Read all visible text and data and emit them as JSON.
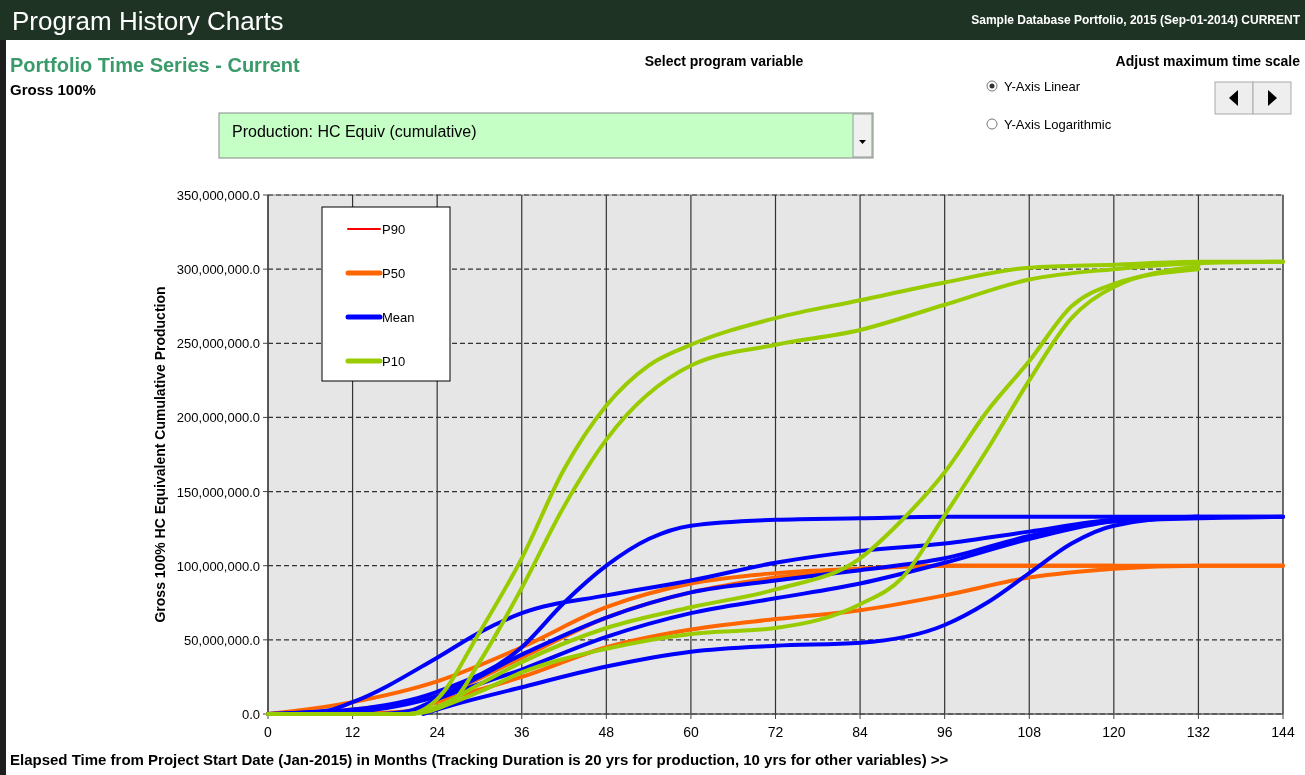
{
  "chart_data": {
    "type": "line",
    "title": "Program History Charts",
    "subtitle": "Portfolio Time Series - Current",
    "xlabel": "Elapsed Time from Project Start Date (Jan-2015) in Months (Tracking Duration is 20 yrs for production, 10 yrs for other variables) >>",
    "ylabel": "Gross 100% HC Equivalent Cumulative Production",
    "annotations": [
      "Sample Database Portfolio, 2015 (Sep-01-2014) CURRENT",
      "Gross 100%",
      "Select program variable",
      "Adjust maximum time scale",
      "Y-Axis Linear",
      "Y-Axis Logarithmic",
      "Production: HC Equiv (cumulative)"
    ],
    "xlim": [
      0,
      144
    ],
    "xticks": [
      0,
      12,
      24,
      36,
      48,
      60,
      72,
      84,
      96,
      108,
      120,
      132,
      144
    ],
    "ylim": [
      0,
      350000000
    ],
    "yticks": [
      {
        "value": 0,
        "label": "0.0"
      },
      {
        "value": 50000000,
        "label": "50,000,000.0"
      },
      {
        "value": 100000000,
        "label": "100,000,000.0"
      },
      {
        "value": 150000000,
        "label": "150,000,000.0"
      },
      {
        "value": 200000000,
        "label": "200,000,000.0"
      },
      {
        "value": 250000000,
        "label": "250,000,000.0"
      },
      {
        "value": 300000000,
        "label": "300,000,000.0"
      },
      {
        "value": 350000000,
        "label": "350,000,000.0"
      }
    ],
    "grid": true,
    "legend": "top left",
    "line_style": "solid",
    "marker": "none",
    "series": [
      {
        "name": "P90",
        "color": "#ff0000"
      },
      {
        "name": "P50",
        "color": "#ff6600",
        "x": [
          0,
          12,
          24,
          36,
          48,
          60,
          72,
          84,
          96,
          144
        ],
        "values": [
          0,
          8000000,
          22000000,
          45000000,
          72000000,
          88000000,
          95000000,
          98000000,
          100000000,
          100000000
        ]
      },
      {
        "color": "#ff6600",
        "x": [
          0,
          12,
          24,
          36,
          48,
          60,
          72,
          84,
          96,
          120
        ],
        "values": [
          0,
          3000000,
          12000000,
          38000000,
          65000000,
          82000000,
          92000000,
          98000000,
          100000000,
          100000000
        ]
      },
      {
        "color": "#ff6600",
        "x": [
          12,
          20,
          24,
          36,
          48,
          60,
          72,
          84,
          96,
          108,
          120,
          132,
          144
        ],
        "values": [
          0,
          2000000,
          8000000,
          25000000,
          45000000,
          57000000,
          64000000,
          70000000,
          80000000,
          92000000,
          98000000,
          100000000,
          100000000
        ]
      },
      {
        "name": "Mean",
        "color": "#0000ff",
        "x": [
          0,
          12,
          24,
          36,
          42,
          48,
          54,
          60,
          72,
          84,
          96,
          144
        ],
        "values": [
          0,
          3000000,
          15000000,
          45000000,
          75000000,
          100000000,
          118000000,
          127000000,
          131000000,
          132000000,
          133000000,
          133000000
        ]
      },
      {
        "color": "#0000ff",
        "x": [
          0,
          8,
          12,
          24,
          30,
          36,
          48,
          60,
          72,
          84,
          96,
          108,
          120,
          132
        ],
        "values": [
          0,
          2000000,
          8000000,
          38000000,
          55000000,
          68000000,
          80000000,
          90000000,
          102000000,
          110000000,
          115000000,
          123000000,
          131000000,
          133000000
        ]
      },
      {
        "color": "#0000ff",
        "x": [
          10,
          14,
          24,
          36,
          48,
          60,
          72,
          84,
          96,
          108,
          120,
          144
        ],
        "values": [
          0,
          2000000,
          12000000,
          40000000,
          65000000,
          82000000,
          90000000,
          97000000,
          105000000,
          120000000,
          130000000,
          133000000
        ]
      },
      {
        "color": "#0000ff",
        "x": [
          16,
          20,
          24,
          36,
          48,
          60,
          72,
          84,
          96,
          108,
          120,
          132
        ],
        "values": [
          0,
          2000000,
          10000000,
          30000000,
          52000000,
          68000000,
          78000000,
          88000000,
          102000000,
          118000000,
          130000000,
          133000000
        ]
      },
      {
        "color": "#0000ff",
        "x": [
          22,
          24,
          36,
          48,
          60,
          72,
          84,
          96,
          102,
          108,
          114,
          120,
          132,
          144
        ],
        "values": [
          0,
          3000000,
          18000000,
          32000000,
          42000000,
          46000000,
          48000000,
          60000000,
          75000000,
          95000000,
          115000000,
          127000000,
          133000000,
          133000000
        ]
      },
      {
        "name": "P10",
        "color": "#99cc00",
        "x": [
          0,
          20,
          24,
          30,
          36,
          42,
          48,
          54,
          60,
          72,
          84,
          96,
          108,
          120,
          132,
          144
        ],
        "values": [
          0,
          0,
          10000000,
          55000000,
          105000000,
          165000000,
          208000000,
          235000000,
          249000000,
          267000000,
          279000000,
          291000000,
          301000000,
          303000000,
          305000000,
          305000000
        ]
      },
      {
        "color": "#99cc00",
        "x": [
          10,
          20,
          26,
          30,
          36,
          42,
          48,
          60,
          72,
          84,
          96,
          108,
          120,
          132,
          144
        ],
        "values": [
          0,
          0,
          8000000,
          35000000,
          85000000,
          140000000,
          185000000,
          235000000,
          249000000,
          259000000,
          276000000,
          293000000,
          300000000,
          304000000,
          305000000
        ]
      },
      {
        "color": "#99cc00",
        "x": [
          0,
          20,
          24,
          30,
          36,
          48,
          60,
          72,
          84,
          90,
          96,
          102,
          108,
          114,
          120,
          132
        ],
        "values": [
          0,
          0,
          5000000,
          20000000,
          35000000,
          58000000,
          72000000,
          84000000,
          105000000,
          131000000,
          163000000,
          204000000,
          238000000,
          275000000,
          290000000,
          300000000
        ]
      },
      {
        "color": "#99cc00",
        "x": [
          10,
          20,
          24,
          30,
          36,
          48,
          60,
          72,
          84,
          90,
          96,
          102,
          108,
          114,
          120,
          132
        ],
        "values": [
          0,
          0,
          4000000,
          15000000,
          28000000,
          44000000,
          54000000,
          58000000,
          74000000,
          92000000,
          134000000,
          178000000,
          225000000,
          267000000,
          288000000,
          302000000
        ]
      }
    ]
  }
}
